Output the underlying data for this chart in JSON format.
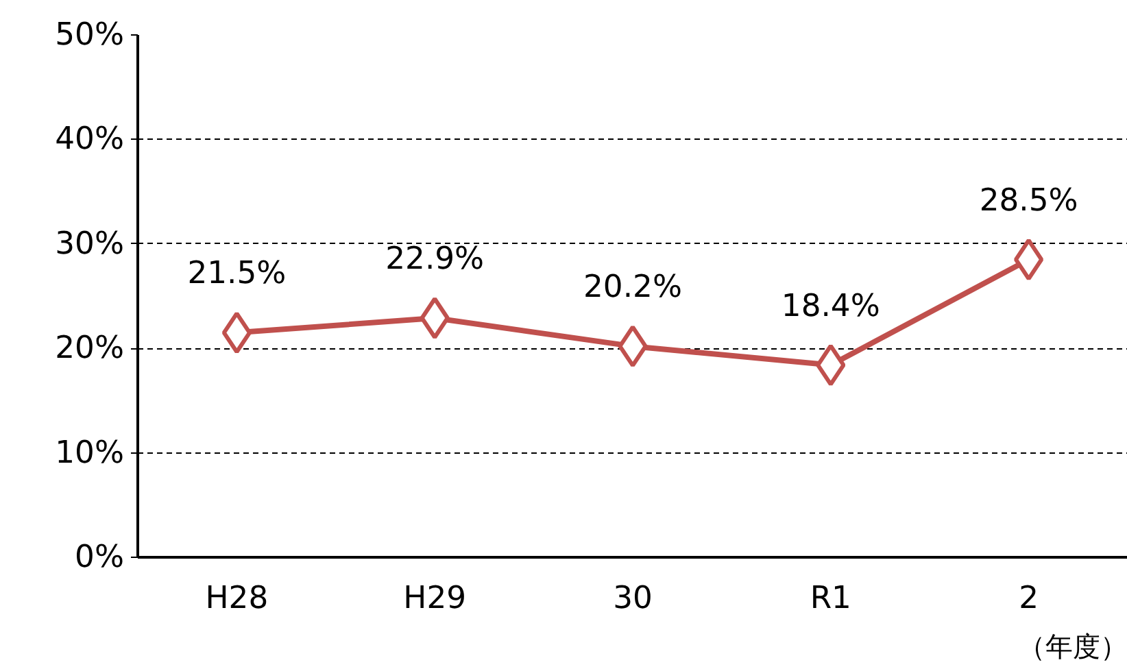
{
  "chart_data": {
    "type": "line",
    "categories": [
      "H28",
      "H29",
      "30",
      "R1",
      "2"
    ],
    "series": [
      {
        "color": "#c0504d",
        "values": [
          21.5,
          22.9,
          20.2,
          18.4,
          28.5
        ]
      }
    ],
    "value_labels": [
      "21.5%",
      "22.9%",
      "20.2%",
      "18.4%",
      "28.5%"
    ],
    "ylim": [
      0,
      50
    ],
    "yticks": [
      {
        "value": 0,
        "label": "0%"
      },
      {
        "value": 10,
        "label": "10%"
      },
      {
        "value": 20,
        "label": "20%"
      },
      {
        "value": 30,
        "label": "30%"
      },
      {
        "value": 40,
        "label": "40%"
      },
      {
        "value": 50,
        "label": "50%"
      }
    ],
    "grid": "y",
    "marker": "diamond",
    "line_style": "solid",
    "annotations": [
      "（年度）"
    ]
  }
}
